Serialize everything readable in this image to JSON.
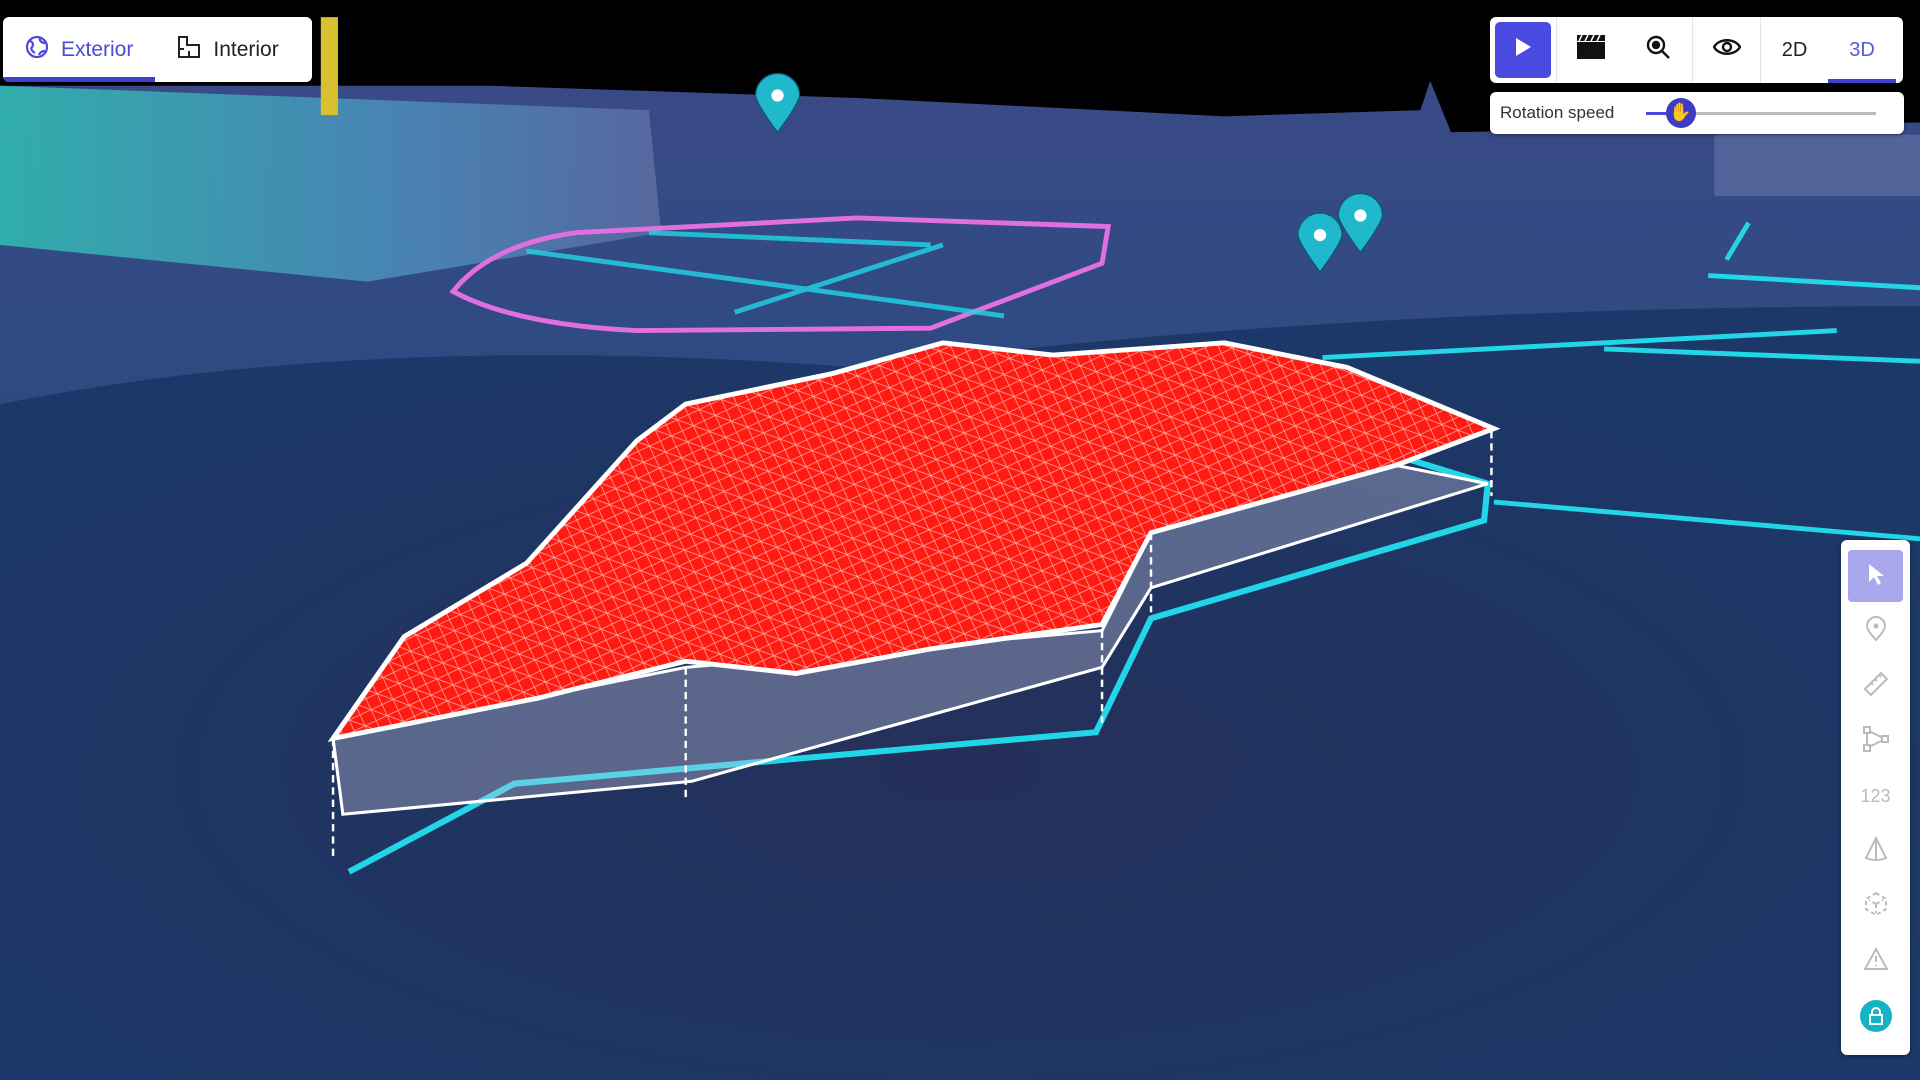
{
  "view_tabs": [
    {
      "label": "Exterior",
      "icon": "globe-icon",
      "active": true
    },
    {
      "label": "Interior",
      "icon": "floorplan-icon",
      "active": false
    }
  ],
  "toolbar": {
    "play_icon": "play-icon",
    "clapper_icon": "clapperboard-icon",
    "zoom_icon": "zoom-icon",
    "eye_icon": "eye-icon",
    "mode_2d": "2D",
    "mode_3d": "3D",
    "active_mode": "3D"
  },
  "rotation": {
    "label": "Rotation speed",
    "value_percent": 15
  },
  "tools": [
    {
      "name": "select",
      "icon": "cursor-arrow-icon",
      "active": true
    },
    {
      "name": "point",
      "icon": "map-pin-icon"
    },
    {
      "name": "measure",
      "icon": "ruler-icon"
    },
    {
      "name": "polygon",
      "icon": "polygon-icon"
    },
    {
      "name": "count",
      "label": "123"
    },
    {
      "name": "volume",
      "icon": "cone-icon"
    },
    {
      "name": "object",
      "icon": "3d-box-icon"
    },
    {
      "name": "issue",
      "icon": "warning-icon"
    },
    {
      "name": "lock",
      "icon": "lock-icon"
    }
  ],
  "colors": {
    "accent": "#4a4ae0",
    "stockpile": "#ff1a12",
    "boundary": "#22d6e8",
    "zone": "#e070e0",
    "pin": "#1fb8cc"
  }
}
